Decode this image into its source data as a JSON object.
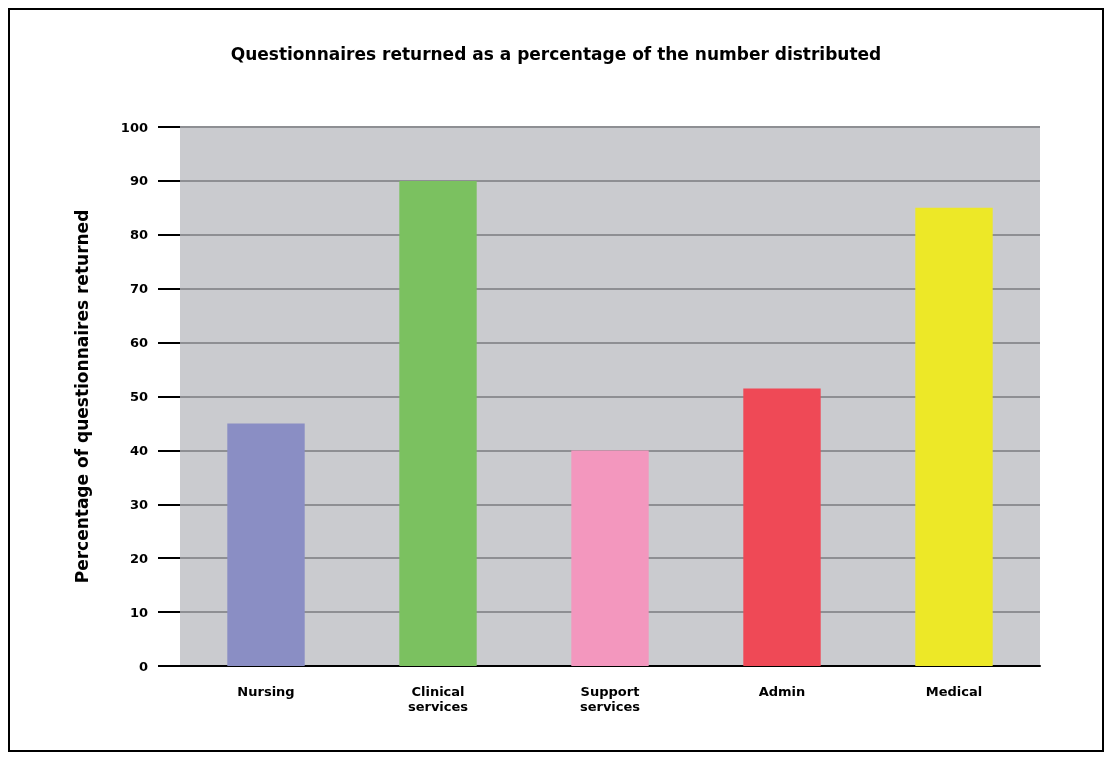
{
  "chart_data": {
    "type": "bar",
    "title": "Questionnaires returned as a percentage of the number distributed",
    "ylabel": "Percentage of questionnaires returned",
    "categories": [
      "Nursing",
      "Clinical\nservices",
      "Support\nservices",
      "Admin",
      "Medical"
    ],
    "values": [
      45,
      90,
      40,
      51.5,
      85
    ],
    "colors": [
      "#8a8ec4",
      "#7bc160",
      "#f397be",
      "#ef4956",
      "#ede827"
    ],
    "ylim": [
      0,
      100
    ],
    "yticks": [
      0,
      10,
      20,
      30,
      40,
      50,
      60,
      70,
      80,
      90,
      100
    ],
    "grid": "y"
  }
}
